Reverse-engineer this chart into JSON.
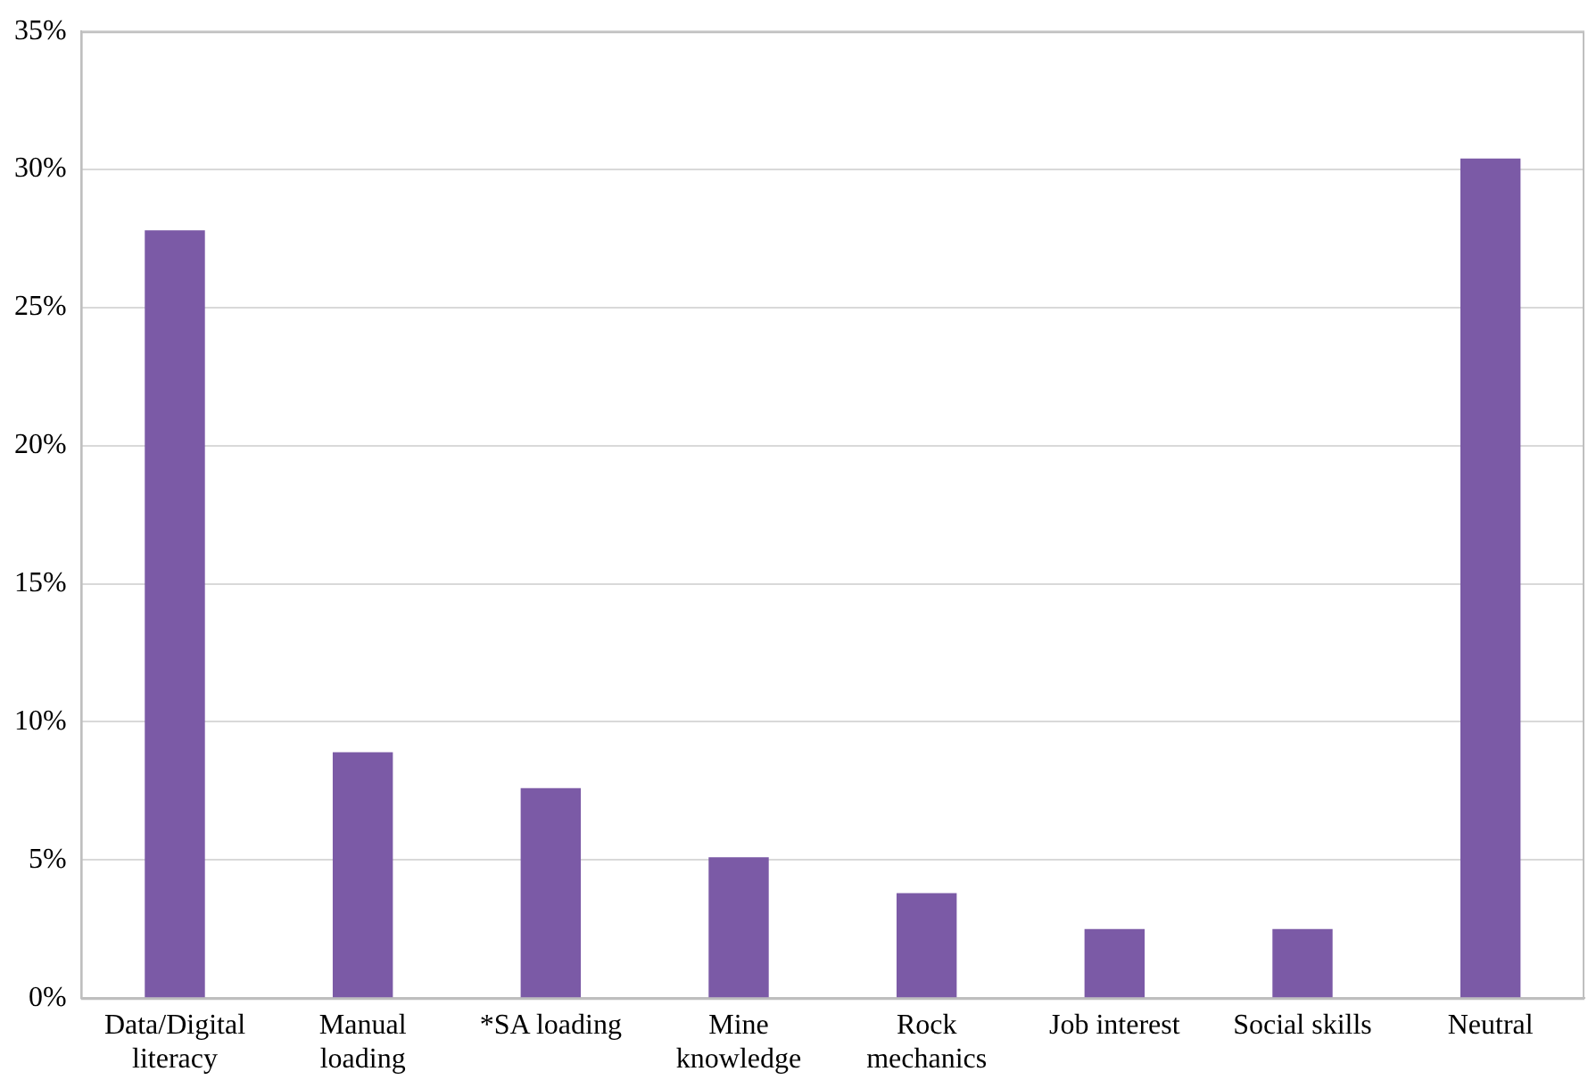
{
  "chart_data": {
    "type": "bar",
    "categories": [
      "Data/Digital literacy",
      "Manual loading",
      "*SA loading",
      "Mine knowledge",
      "Rock mechanics",
      "Job interest",
      "Social skills",
      "Neutral"
    ],
    "values": [
      27.8,
      8.9,
      7.6,
      5.1,
      3.8,
      2.5,
      2.5,
      30.4
    ],
    "color": "#7b5aa6",
    "ylim": [
      0,
      35
    ],
    "yticks": [
      {
        "value": 0,
        "label": "0%"
      },
      {
        "value": 5,
        "label": "5%"
      },
      {
        "value": 10,
        "label": "10%"
      },
      {
        "value": 15,
        "label": "15%"
      },
      {
        "value": 20,
        "label": "20%"
      },
      {
        "value": 25,
        "label": "25%"
      },
      {
        "value": 30,
        "label": "30%"
      },
      {
        "value": 35,
        "label": "35%"
      }
    ],
    "grid": "y",
    "legend": false
  }
}
